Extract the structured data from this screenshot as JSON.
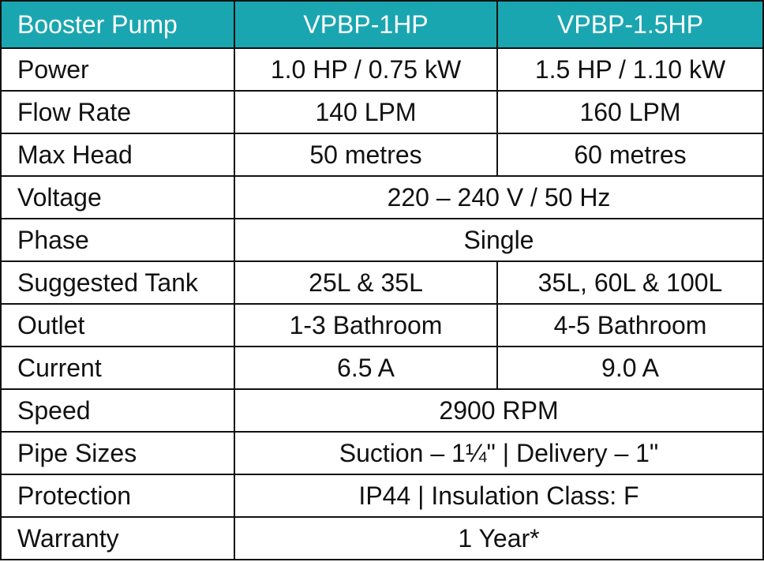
{
  "header": {
    "product_label": "Booster Pump",
    "model_1": "VPBP-1HP",
    "model_2": "VPBP-1.5HP"
  },
  "rows": [
    {
      "label": "Power",
      "v1": "1.0 HP / 0.75 kW",
      "v2": "1.5 HP / 1.10 kW"
    },
    {
      "label": "Flow Rate",
      "v1": "140 LPM",
      "v2": "160 LPM"
    },
    {
      "label": "Max Head",
      "v1": "50 metres",
      "v2": "60 metres"
    },
    {
      "label": "Voltage",
      "shared": "220 – 240 V / 50 Hz"
    },
    {
      "label": "Phase",
      "shared": "Single"
    },
    {
      "label": "Suggested Tank",
      "v1": "25L & 35L",
      "v2": "35L, 60L & 100L"
    },
    {
      "label": "Outlet",
      "v1": "1-3 Bathroom",
      "v2": "4-5 Bathroom"
    },
    {
      "label": "Current",
      "v1": "6.5 A",
      "v2": "9.0 A"
    },
    {
      "label": "Speed",
      "shared": "2900 RPM"
    },
    {
      "label": "Pipe Sizes",
      "shared": "Suction – 1¼\" | Delivery – 1\""
    },
    {
      "label": "Protection",
      "shared": "IP44 | Insulation Class: F"
    },
    {
      "label": "Warranty",
      "shared": "1 Year*"
    }
  ],
  "colors": {
    "header_bg": "#1aa6b0",
    "header_text": "#ffffff",
    "border": "#111111"
  }
}
